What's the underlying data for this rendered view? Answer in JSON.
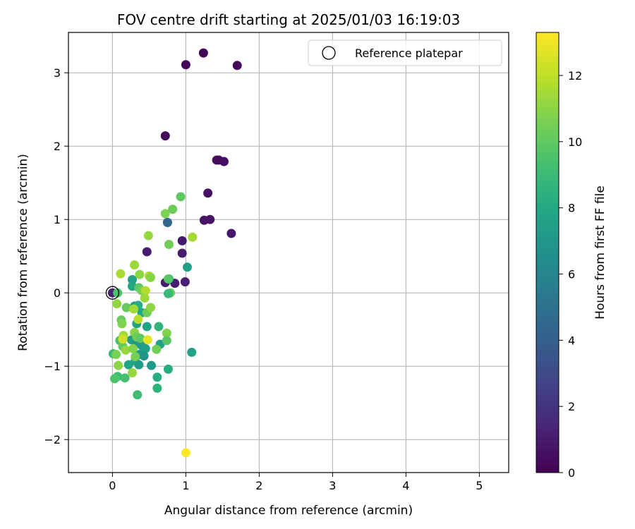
{
  "chart_data": {
    "type": "scatter",
    "title": "FOV centre drift starting at 2025/01/03 16:19:03",
    "xlabel": "Angular distance from reference (arcmin)",
    "ylabel": "Rotation from reference (arcmin)",
    "xlim": [
      -0.6,
      5.4
    ],
    "ylim": [
      -2.45,
      3.55
    ],
    "xticks": [
      0,
      1,
      2,
      3,
      4,
      5
    ],
    "xtick_labels": [
      "0",
      "1",
      "2",
      "3",
      "4",
      "5"
    ],
    "yticks": [
      -2,
      -1,
      0,
      1,
      2,
      3
    ],
    "ytick_labels": [
      "−2",
      "−1",
      "0",
      "1",
      "2",
      "3"
    ],
    "grid": true,
    "legend": {
      "position": "top-right",
      "entries": [
        "Reference platepar"
      ]
    },
    "reference_point": {
      "x": 0,
      "y": 0
    },
    "colorbar": {
      "label": "Hours from first FF file",
      "range": [
        0,
        13.3
      ],
      "ticks": [
        0,
        2,
        4,
        6,
        8,
        10,
        12
      ],
      "tick_labels": [
        "0",
        "2",
        "4",
        "6",
        "8",
        "10",
        "12"
      ],
      "colormap": "viridis"
    },
    "points": [
      {
        "x": 1.24,
        "y": 3.27,
        "h": 0.1
      },
      {
        "x": 1.0,
        "y": 3.11,
        "h": 0.2
      },
      {
        "x": 1.7,
        "y": 3.1,
        "h": 0.2
      },
      {
        "x": 0.72,
        "y": 2.14,
        "h": 0.3
      },
      {
        "x": 1.42,
        "y": 1.81,
        "h": 0.4
      },
      {
        "x": 1.45,
        "y": 1.81,
        "h": 0.4
      },
      {
        "x": 1.52,
        "y": 1.79,
        "h": 0.5
      },
      {
        "x": 1.3,
        "y": 1.36,
        "h": 0.6
      },
      {
        "x": 1.25,
        "y": 0.99,
        "h": 0.7
      },
      {
        "x": 1.33,
        "y": 1.0,
        "h": 0.7
      },
      {
        "x": 1.62,
        "y": 0.81,
        "h": 0.8
      },
      {
        "x": 0.95,
        "y": 0.71,
        "h": 0.9
      },
      {
        "x": 0.47,
        "y": 0.56,
        "h": 1.0
      },
      {
        "x": 0.95,
        "y": 0.54,
        "h": 1.0
      },
      {
        "x": 0.72,
        "y": 0.14,
        "h": 1.1
      },
      {
        "x": 0.85,
        "y": 0.13,
        "h": 1.1
      },
      {
        "x": 0.99,
        "y": 0.15,
        "h": 1.2
      },
      {
        "x": 0.0,
        "y": 0.0,
        "h": 1.3
      },
      {
        "x": 0.75,
        "y": 0.96,
        "h": 4.2
      },
      {
        "x": 0.75,
        "y": 0.96,
        "h": 4.5
      },
      {
        "x": 1.02,
        "y": 0.35,
        "h": 7.5
      },
      {
        "x": 0.77,
        "y": 0.19,
        "h": 8.0
      },
      {
        "x": 1.08,
        "y": -0.81,
        "h": 7.6
      },
      {
        "x": 0.27,
        "y": 0.18,
        "h": 7.6
      },
      {
        "x": 0.27,
        "y": 0.09,
        "h": 7.8
      },
      {
        "x": 0.3,
        "y": -0.18,
        "h": 7.5
      },
      {
        "x": 0.35,
        "y": -0.17,
        "h": 8.2
      },
      {
        "x": 0.4,
        "y": -0.27,
        "h": 7.9
      },
      {
        "x": 0.33,
        "y": -0.42,
        "h": 7.7
      },
      {
        "x": 0.47,
        "y": -0.46,
        "h": 7.8
      },
      {
        "x": 0.26,
        "y": -0.64,
        "h": 7.4
      },
      {
        "x": 0.33,
        "y": -0.68,
        "h": 7.0
      },
      {
        "x": 0.4,
        "y": -0.72,
        "h": 7.2
      },
      {
        "x": 0.45,
        "y": -0.76,
        "h": 7.5
      },
      {
        "x": 0.37,
        "y": -0.84,
        "h": 7.0
      },
      {
        "x": 0.43,
        "y": -0.86,
        "h": 6.8
      },
      {
        "x": 0.31,
        "y": -0.93,
        "h": 7.6
      },
      {
        "x": 0.36,
        "y": -0.98,
        "h": 7.3
      },
      {
        "x": 0.22,
        "y": -0.98,
        "h": 7.8
      },
      {
        "x": 0.53,
        "y": -0.99,
        "h": 7.2
      },
      {
        "x": 0.65,
        "y": -0.7,
        "h": 7.6
      },
      {
        "x": 0.63,
        "y": -0.46,
        "h": 8.6
      },
      {
        "x": 0.61,
        "y": -1.15,
        "h": 8.2
      },
      {
        "x": 0.61,
        "y": -1.3,
        "h": 8.5
      },
      {
        "x": 0.76,
        "y": -1.04,
        "h": 8.2
      },
      {
        "x": 0.34,
        "y": -1.39,
        "h": 9.1
      },
      {
        "x": 0.17,
        "y": -1.16,
        "h": 9.3
      },
      {
        "x": 0.07,
        "y": -1.14,
        "h": 9.2
      },
      {
        "x": 0.03,
        "y": -1.17,
        "h": 9.5
      },
      {
        "x": 0.01,
        "y": -0.83,
        "h": 9.0
      },
      {
        "x": 0.05,
        "y": -0.84,
        "h": 10.6
      },
      {
        "x": 0.08,
        "y": -0.99,
        "h": 11.0
      },
      {
        "x": 0.1,
        "y": -0.65,
        "h": 9.4
      },
      {
        "x": 0.12,
        "y": -0.37,
        "h": 10.2
      },
      {
        "x": 0.13,
        "y": -0.42,
        "h": 10.7
      },
      {
        "x": 0.14,
        "y": -0.73,
        "h": 10.0
      },
      {
        "x": 0.18,
        "y": -0.78,
        "h": 11.2
      },
      {
        "x": 0.15,
        "y": -0.58,
        "h": 11.4
      },
      {
        "x": 0.14,
        "y": -0.63,
        "h": 12.3
      },
      {
        "x": 0.19,
        "y": -0.2,
        "h": 10.1
      },
      {
        "x": 0.07,
        "y": 0.0,
        "h": 9.5
      },
      {
        "x": 0.06,
        "y": -0.15,
        "h": 11.1
      },
      {
        "x": 0.11,
        "y": 0.26,
        "h": 11.6
      },
      {
        "x": 0.3,
        "y": 0.38,
        "h": 11.3
      },
      {
        "x": 0.37,
        "y": 0.25,
        "h": 11.0
      },
      {
        "x": 0.29,
        "y": -0.22,
        "h": 11.4
      },
      {
        "x": 0.35,
        "y": -0.36,
        "h": 11.9
      },
      {
        "x": 0.3,
        "y": -0.54,
        "h": 10.9
      },
      {
        "x": 0.33,
        "y": -0.6,
        "h": 10.4
      },
      {
        "x": 0.38,
        "y": -0.62,
        "h": 10.0
      },
      {
        "x": 0.28,
        "y": -0.76,
        "h": 10.8
      },
      {
        "x": 0.31,
        "y": -0.87,
        "h": 10.5
      },
      {
        "x": 0.27,
        "y": -1.09,
        "h": 11.2
      },
      {
        "x": 0.36,
        "y": 0.07,
        "h": 9.9
      },
      {
        "x": 0.4,
        "y": 0.03,
        "h": 10.4
      },
      {
        "x": 0.45,
        "y": 0.03,
        "h": 11.8
      },
      {
        "x": 0.44,
        "y": -0.07,
        "h": 11.3
      },
      {
        "x": 0.47,
        "y": -0.27,
        "h": 10.3
      },
      {
        "x": 0.52,
        "y": -0.2,
        "h": 11.0
      },
      {
        "x": 0.5,
        "y": 0.23,
        "h": 11.8
      },
      {
        "x": 0.52,
        "y": 0.21,
        "h": 10.9
      },
      {
        "x": 0.49,
        "y": 0.78,
        "h": 11.2
      },
      {
        "x": 0.48,
        "y": -0.64,
        "h": 12.8
      },
      {
        "x": 0.6,
        "y": -0.77,
        "h": 10.4
      },
      {
        "x": 0.74,
        "y": -0.55,
        "h": 10.8
      },
      {
        "x": 0.74,
        "y": -0.65,
        "h": 9.8
      },
      {
        "x": 0.77,
        "y": 0.66,
        "h": 10.4
      },
      {
        "x": 0.72,
        "y": 1.08,
        "h": 10.7
      },
      {
        "x": 0.82,
        "y": 1.14,
        "h": 10.3
      },
      {
        "x": 0.93,
        "y": 1.31,
        "h": 10.0
      },
      {
        "x": 1.09,
        "y": 0.76,
        "h": 11.5
      },
      {
        "x": 0.79,
        "y": 0.0,
        "h": 10.2
      },
      {
        "x": 0.76,
        "y": 0.19,
        "h": 9.8
      },
      {
        "x": 0.76,
        "y": -0.01,
        "h": 8.9
      },
      {
        "x": 1.0,
        "y": -2.18,
        "h": 13.3
      }
    ]
  }
}
